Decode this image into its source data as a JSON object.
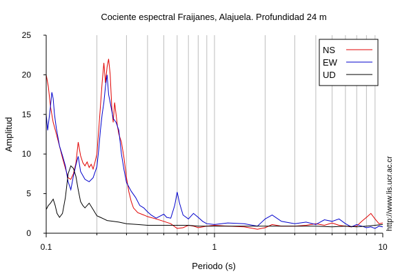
{
  "chart_data": {
    "type": "line",
    "title": "Cociente espectral Fraijanes, Alajuela. Profundidad 24 m",
    "xlabel": "Periodo (s)",
    "ylabel": "Amplitud",
    "x_scale": "log",
    "xlim": [
      0.1,
      10
    ],
    "ylim": [
      0,
      25
    ],
    "x_ticks": [
      0.1,
      1,
      10
    ],
    "x_tick_labels": [
      "0.1",
      "1",
      "10"
    ],
    "y_ticks": [
      0,
      5,
      10,
      15,
      20,
      25
    ],
    "y_tick_labels": [
      "0",
      "5",
      "10",
      "15",
      "20",
      "25"
    ],
    "grid": "vertical-log",
    "legend_position": "top-right",
    "watermark": "http://www.lis.ucr.ac.cr",
    "series": [
      {
        "name": "NS",
        "color": "#e00000",
        "points": [
          [
            0.1,
            20
          ],
          [
            0.103,
            18.5
          ],
          [
            0.106,
            16
          ],
          [
            0.11,
            14
          ],
          [
            0.115,
            12.5
          ],
          [
            0.12,
            11
          ],
          [
            0.125,
            9.5
          ],
          [
            0.13,
            8.2
          ],
          [
            0.135,
            7
          ],
          [
            0.14,
            6.8
          ],
          [
            0.145,
            7.5
          ],
          [
            0.15,
            8.8
          ],
          [
            0.155,
            11.5
          ],
          [
            0.16,
            9.8
          ],
          [
            0.165,
            8.9
          ],
          [
            0.17,
            8.5
          ],
          [
            0.175,
            9
          ],
          [
            0.18,
            8.3
          ],
          [
            0.185,
            8.7
          ],
          [
            0.19,
            8.1
          ],
          [
            0.195,
            9
          ],
          [
            0.2,
            10
          ],
          [
            0.205,
            13
          ],
          [
            0.21,
            16
          ],
          [
            0.215,
            19
          ],
          [
            0.22,
            21.5
          ],
          [
            0.225,
            19
          ],
          [
            0.23,
            21
          ],
          [
            0.235,
            22
          ],
          [
            0.24,
            20
          ],
          [
            0.245,
            16
          ],
          [
            0.25,
            14
          ],
          [
            0.255,
            16.5
          ],
          [
            0.26,
            15
          ],
          [
            0.265,
            13.5
          ],
          [
            0.27,
            12.5
          ],
          [
            0.28,
            11.5
          ],
          [
            0.29,
            9.5
          ],
          [
            0.3,
            7
          ],
          [
            0.31,
            5.2
          ],
          [
            0.32,
            4
          ],
          [
            0.33,
            3.2
          ],
          [
            0.35,
            2.6
          ],
          [
            0.38,
            2.3
          ],
          [
            0.4,
            2.1
          ],
          [
            0.45,
            1.8
          ],
          [
            0.5,
            1.5
          ],
          [
            0.55,
            1.2
          ],
          [
            0.6,
            0.6
          ],
          [
            0.65,
            0.7
          ],
          [
            0.7,
            1.0
          ],
          [
            0.75,
            0.9
          ],
          [
            0.8,
            0.7
          ],
          [
            0.9,
            0.9
          ],
          [
            1.0,
            1.0
          ],
          [
            1.2,
            0.9
          ],
          [
            1.5,
            0.8
          ],
          [
            1.8,
            0.5
          ],
          [
            2.0,
            0.7
          ],
          [
            2.2,
            1.1
          ],
          [
            2.5,
            0.9
          ],
          [
            3.0,
            0.9
          ],
          [
            3.5,
            1.0
          ],
          [
            4.0,
            1.2
          ],
          [
            4.5,
            1.0
          ],
          [
            5.0,
            1.3
          ],
          [
            5.5,
            1.0
          ],
          [
            6.0,
            0.9
          ],
          [
            6.5,
            0.8
          ],
          [
            7.0,
            0.9
          ],
          [
            7.5,
            1.5
          ],
          [
            8.0,
            2.0
          ],
          [
            8.5,
            2.5
          ],
          [
            9.0,
            1.8
          ],
          [
            9.5,
            1.2
          ],
          [
            10.0,
            1.3
          ]
        ]
      },
      {
        "name": "EW",
        "color": "#0000cc",
        "points": [
          [
            0.1,
            15
          ],
          [
            0.102,
            13
          ],
          [
            0.104,
            14.5
          ],
          [
            0.106,
            16
          ],
          [
            0.108,
            17.8
          ],
          [
            0.11,
            17
          ],
          [
            0.112,
            15
          ],
          [
            0.115,
            13.2
          ],
          [
            0.12,
            11
          ],
          [
            0.125,
            9.8
          ],
          [
            0.13,
            8.5
          ],
          [
            0.135,
            6.5
          ],
          [
            0.14,
            5.5
          ],
          [
            0.145,
            7.2
          ],
          [
            0.15,
            8.6
          ],
          [
            0.155,
            9.7
          ],
          [
            0.16,
            7.8
          ],
          [
            0.17,
            6.8
          ],
          [
            0.18,
            6.5
          ],
          [
            0.19,
            7
          ],
          [
            0.2,
            8.4
          ],
          [
            0.205,
            10.5
          ],
          [
            0.21,
            13
          ],
          [
            0.215,
            15
          ],
          [
            0.22,
            16.5
          ],
          [
            0.225,
            18.5
          ],
          [
            0.23,
            20
          ],
          [
            0.235,
            17.5
          ],
          [
            0.24,
            16.5
          ],
          [
            0.25,
            14.5
          ],
          [
            0.26,
            14
          ],
          [
            0.27,
            13
          ],
          [
            0.28,
            10
          ],
          [
            0.29,
            8
          ],
          [
            0.3,
            6.4
          ],
          [
            0.32,
            5.3
          ],
          [
            0.34,
            4.5
          ],
          [
            0.36,
            3.5
          ],
          [
            0.38,
            3.2
          ],
          [
            0.4,
            2.7
          ],
          [
            0.42,
            2.3
          ],
          [
            0.45,
            1.9
          ],
          [
            0.5,
            2.4
          ],
          [
            0.52,
            2.0
          ],
          [
            0.55,
            1.9
          ],
          [
            0.58,
            3.5
          ],
          [
            0.6,
            5.2
          ],
          [
            0.62,
            3.8
          ],
          [
            0.65,
            2.3
          ],
          [
            0.7,
            1.8
          ],
          [
            0.75,
            2.5
          ],
          [
            0.8,
            2.0
          ],
          [
            0.85,
            1.5
          ],
          [
            0.9,
            1.2
          ],
          [
            1.0,
            1.1
          ],
          [
            1.2,
            1.3
          ],
          [
            1.5,
            1.2
          ],
          [
            1.8,
            0.9
          ],
          [
            2.0,
            1.8
          ],
          [
            2.2,
            2.3
          ],
          [
            2.5,
            1.5
          ],
          [
            3.0,
            1.2
          ],
          [
            3.5,
            1.4
          ],
          [
            4.0,
            1.1
          ],
          [
            4.5,
            1.7
          ],
          [
            5.0,
            1.5
          ],
          [
            5.5,
            1.8
          ],
          [
            6.0,
            1.2
          ],
          [
            6.5,
            0.8
          ],
          [
            7.0,
            1.1
          ],
          [
            7.5,
            0.9
          ],
          [
            8.0,
            0.7
          ],
          [
            8.5,
            0.8
          ],
          [
            9.0,
            0.6
          ],
          [
            9.5,
            0.9
          ],
          [
            10.0,
            0.8
          ]
        ]
      },
      {
        "name": "UD",
        "color": "#000000",
        "points": [
          [
            0.1,
            3
          ],
          [
            0.103,
            3.5
          ],
          [
            0.106,
            3.8
          ],
          [
            0.11,
            4.3
          ],
          [
            0.113,
            3.5
          ],
          [
            0.116,
            2.5
          ],
          [
            0.12,
            2.0
          ],
          [
            0.125,
            2.5
          ],
          [
            0.13,
            4.5
          ],
          [
            0.135,
            7.5
          ],
          [
            0.14,
            8.5
          ],
          [
            0.145,
            8.2
          ],
          [
            0.15,
            7.2
          ],
          [
            0.155,
            5.5
          ],
          [
            0.16,
            4.0
          ],
          [
            0.165,
            3.5
          ],
          [
            0.17,
            3.2
          ],
          [
            0.18,
            3.8
          ],
          [
            0.19,
            3.0
          ],
          [
            0.2,
            2.2
          ],
          [
            0.21,
            2.0
          ],
          [
            0.22,
            1.8
          ],
          [
            0.23,
            1.6
          ],
          [
            0.25,
            1.5
          ],
          [
            0.27,
            1.4
          ],
          [
            0.3,
            1.2
          ],
          [
            0.35,
            1.1
          ],
          [
            0.4,
            1.0
          ],
          [
            0.5,
            1.0
          ],
          [
            0.6,
            1.0
          ],
          [
            0.7,
            1.0
          ],
          [
            0.8,
            0.9
          ],
          [
            1.0,
            0.9
          ],
          [
            1.5,
            0.9
          ],
          [
            2.0,
            0.9
          ],
          [
            3.0,
            0.9
          ],
          [
            4.0,
            0.9
          ],
          [
            5.0,
            0.8
          ],
          [
            6.0,
            0.9
          ],
          [
            7.0,
            0.8
          ],
          [
            8.0,
            0.9
          ],
          [
            9.0,
            1.0
          ],
          [
            10.0,
            1.1
          ]
        ]
      }
    ]
  }
}
